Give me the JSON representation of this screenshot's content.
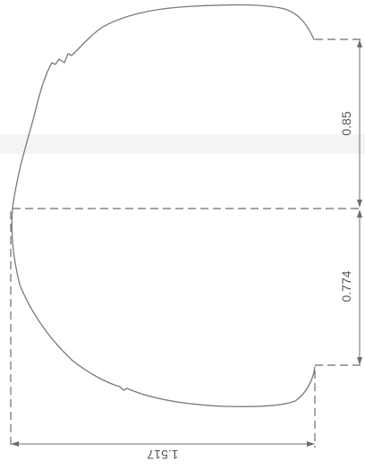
{
  "dimensions": {
    "upper_height": "0.85",
    "lower_height": "0.774",
    "total_width": "1.517"
  },
  "colors": {
    "profile": "#7a7a7a",
    "lines": "#6e6e6e",
    "text": "#555555"
  }
}
